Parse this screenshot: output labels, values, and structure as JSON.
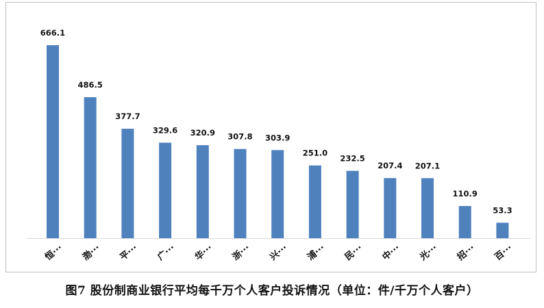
{
  "caption": "图7 股份制商业银行平均每千万个人客户投诉情况（单位：件/千万个人客户）",
  "chart_data": {
    "type": "bar",
    "categories": [
      "恒···",
      "渤···",
      "平···",
      "广···",
      "华···",
      "浙···",
      "兴···",
      "浦···",
      "民···",
      "中···",
      "光···",
      "招···",
      "百···"
    ],
    "values": [
      666.1,
      486.5,
      377.7,
      329.6,
      320.9,
      307.8,
      303.9,
      251.0,
      232.5,
      207.4,
      207.1,
      110.9,
      53.3
    ],
    "value_labels": [
      "666.1",
      "486.5",
      "377.7",
      "329.6",
      "320.9",
      "307.8",
      "303.9",
      "251.0",
      "232.5",
      "207.4",
      "207.1",
      "110.9",
      "53.3"
    ],
    "title": "",
    "xlabel": "",
    "ylabel": "",
    "ylim": [
      0,
      666.1
    ],
    "grid": false,
    "legend": "none",
    "bar_color": "#4f81bd",
    "baseline_color": "#d9d9d9"
  }
}
